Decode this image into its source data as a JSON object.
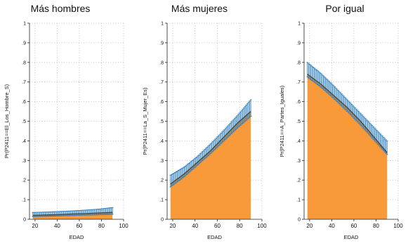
{
  "colors": {
    "area_fill": "#f8993a",
    "ci_color": "#2f7fbf",
    "line_color": "#404a44",
    "grid_color": "#b5b5b5",
    "axis_color": "#222222"
  },
  "chart_data": [
    {
      "type": "area",
      "title": "Más hombres",
      "xlabel": "EDAD",
      "ylabel": "Pr(P2411==El_Los_Hombre_S)",
      "xlim": [
        15,
        100
      ],
      "ylim": [
        0,
        1
      ],
      "x_ticks": [
        "20",
        "40",
        "60",
        "80",
        "100"
      ],
      "y_ticks": [
        "0",
        ".1",
        ".2",
        ".3",
        ".4",
        ".5",
        ".6",
        ".7",
        ".8",
        ".9",
        "1"
      ],
      "grid": true,
      "x": [
        18,
        30,
        42,
        54,
        66,
        78,
        90
      ],
      "y": [
        0.02,
        0.022,
        0.024,
        0.027,
        0.029,
        0.032,
        0.035
      ],
      "ci_low": [
        0.013,
        0.015,
        0.017,
        0.019,
        0.021,
        0.023,
        0.025
      ],
      "ci_high": [
        0.035,
        0.037,
        0.04,
        0.043,
        0.047,
        0.052,
        0.06
      ]
    },
    {
      "type": "area",
      "title": "Más mujeres",
      "xlabel": "EDAD",
      "ylabel": "Pr(P2411==La_S_Mujer_Es)",
      "xlim": [
        15,
        100
      ],
      "ylim": [
        0,
        1
      ],
      "x_ticks": [
        "20",
        "40",
        "60",
        "80",
        "100"
      ],
      "y_ticks": [
        "0",
        ".1",
        ".2",
        ".3",
        ".4",
        ".5",
        ".6",
        ".7",
        ".8",
        ".9",
        "1"
      ],
      "grid": true,
      "x": [
        18,
        30,
        42,
        54,
        66,
        78,
        90
      ],
      "y": [
        0.18,
        0.23,
        0.29,
        0.35,
        0.42,
        0.49,
        0.55
      ],
      "ci_low": [
        0.165,
        0.215,
        0.275,
        0.335,
        0.4,
        0.465,
        0.525
      ],
      "ci_high": [
        0.225,
        0.265,
        0.32,
        0.385,
        0.455,
        0.53,
        0.61
      ]
    },
    {
      "type": "area",
      "title": "Por igual",
      "xlabel": "EDAD",
      "ylabel": "Pr(P2411==A_Partes_Iguales)",
      "xlim": [
        15,
        100
      ],
      "ylim": [
        0,
        1
      ],
      "x_ticks": [
        "20",
        "40",
        "60",
        "80",
        "100"
      ],
      "y_ticks": [
        "0",
        ".1",
        ".2",
        ".3",
        ".4",
        ".5",
        ".6",
        ".7",
        ".8",
        ".9",
        "1"
      ],
      "grid": true,
      "x": [
        18,
        30,
        42,
        54,
        66,
        78,
        90
      ],
      "y": [
        0.74,
        0.69,
        0.63,
        0.57,
        0.5,
        0.42,
        0.34
      ],
      "ci_low": [
        0.725,
        0.675,
        0.615,
        0.55,
        0.48,
        0.405,
        0.33
      ],
      "ci_high": [
        0.8,
        0.745,
        0.68,
        0.61,
        0.54,
        0.47,
        0.4
      ]
    }
  ]
}
